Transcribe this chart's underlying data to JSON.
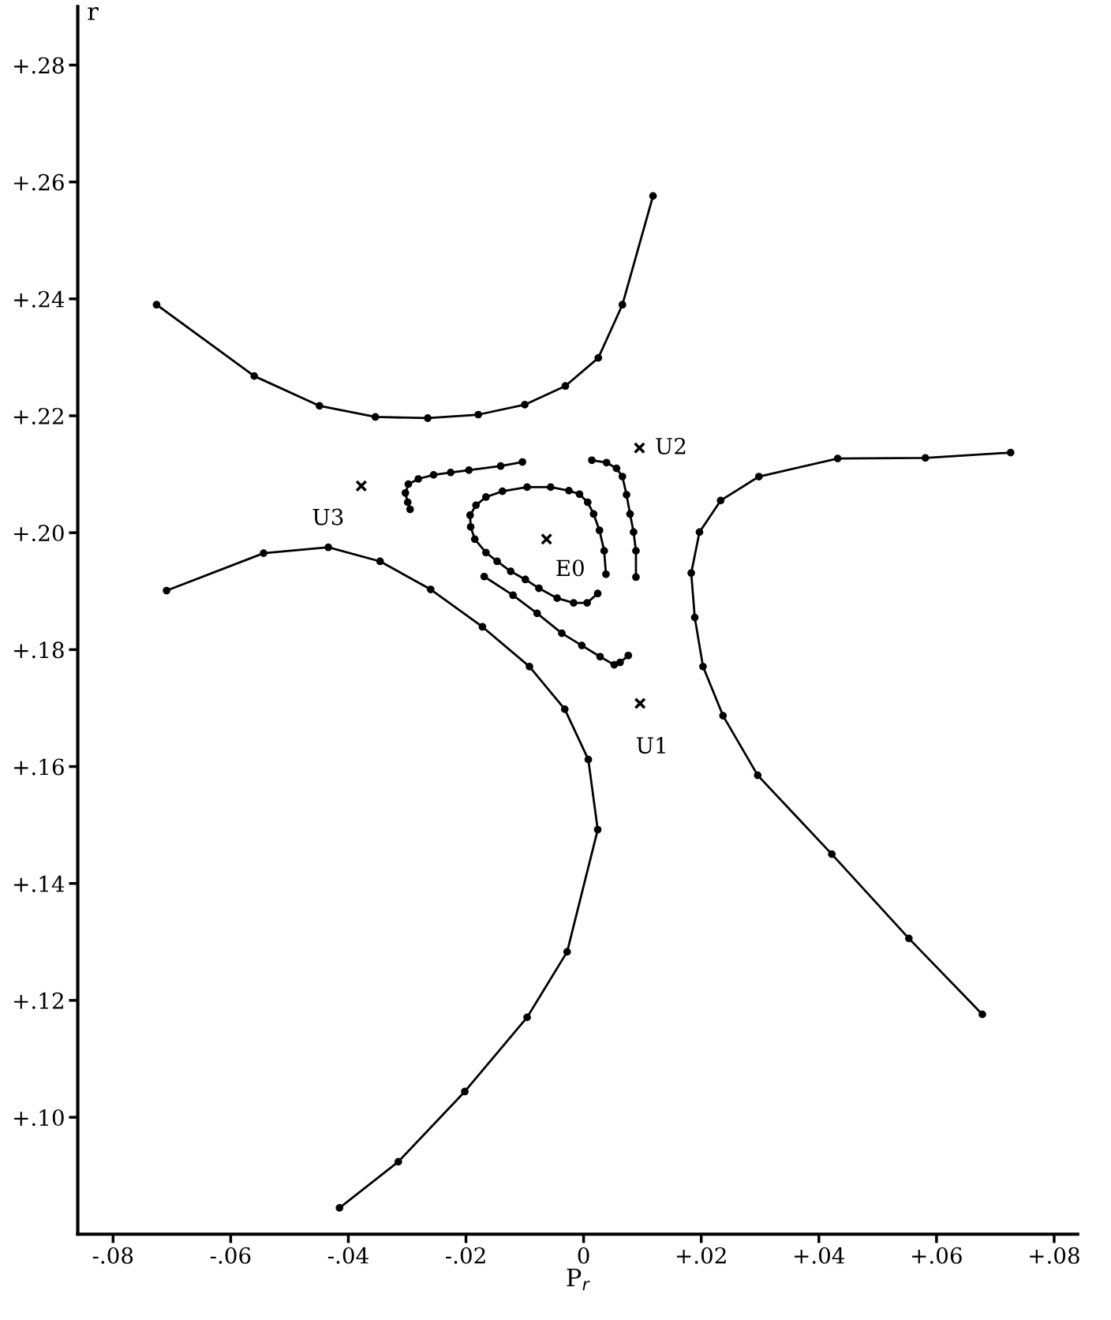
{
  "chart_data": {
    "type": "line",
    "xlabel": "P$_{r}$",
    "ylabel": "r",
    "marker": "circle",
    "line_style": "solid",
    "grid": false,
    "legend": false,
    "xlim": [
      -0.086,
      0.084
    ],
    "ylim": [
      0.08,
      0.29
    ],
    "xticks": [
      {
        "value": -0.08,
        "label": "-.08"
      },
      {
        "value": -0.06,
        "label": "-.06"
      },
      {
        "value": -0.04,
        "label": "-.04"
      },
      {
        "value": -0.02,
        "label": "-.02"
      },
      0,
      {
        "value": 0.02,
        "label": "+.02"
      },
      {
        "value": 0.04,
        "label": "+.04"
      },
      {
        "value": 0.06,
        "label": "+.06"
      },
      {
        "value": 0.08,
        "label": "+.08"
      }
    ],
    "yticks": [
      {
        "value": 0.1,
        "label": "+.10"
      },
      {
        "value": 0.12,
        "label": "+.12"
      },
      {
        "value": 0.14,
        "label": "+.14"
      },
      {
        "value": 0.16,
        "label": "+.16"
      },
      {
        "value": 0.18,
        "label": "+.18"
      },
      {
        "value": 0.2,
        "label": "+.20"
      },
      {
        "value": 0.22,
        "label": "+.22"
      },
      {
        "value": 0.24,
        "label": "+.24"
      },
      {
        "value": 0.26,
        "label": "+.26"
      },
      {
        "value": 0.28,
        "label": "+.28"
      }
    ],
    "series": [
      {
        "color": "#000000",
        "x": [
          -0.0726,
          -0.056,
          -0.0449,
          -0.0354,
          -0.0265,
          -0.0179,
          -0.01,
          -0.0031,
          0.0025,
          0.0066,
          0.0118
        ],
        "values": [
          0.239,
          0.2268,
          0.2217,
          0.2198,
          0.2196,
          0.2202,
          0.2219,
          0.2251,
          0.2299,
          0.239,
          0.2576
        ]
      },
      {
        "color": "#000000",
        "x": [
          -0.0709,
          -0.0544,
          -0.0434,
          -0.0346,
          -0.026,
          -0.0172,
          -0.0092,
          -0.0032,
          0.0008,
          0.0024,
          -0.0028,
          -0.0096,
          -0.0202,
          -0.0315,
          -0.0415
        ],
        "values": [
          0.1901,
          0.1965,
          0.1975,
          0.1951,
          0.1903,
          0.1839,
          0.1771,
          0.1698,
          0.1612,
          0.1492,
          0.1283,
          0.1171,
          0.1044,
          0.0924,
          0.0845
        ]
      },
      {
        "color": "#000000",
        "x": [
          0.0726,
          0.0581,
          0.0432,
          0.0298,
          0.0233,
          0.0197,
          0.0183,
          0.0189,
          0.0203,
          0.0237,
          0.0296,
          0.0422,
          0.0553,
          0.0678
        ],
        "values": [
          0.2137,
          0.2128,
          0.2127,
          0.2096,
          0.2055,
          0.2001,
          0.1931,
          0.1855,
          0.1771,
          0.1687,
          0.1585,
          0.145,
          0.1306,
          0.1176
        ]
      },
      {
        "color": "#000000",
        "x": [
          -0.0104,
          -0.0141,
          -0.0195,
          -0.0226,
          -0.0255,
          -0.0281,
          -0.0298,
          -0.0303,
          -0.0299,
          -0.0295
        ],
        "values": [
          0.2121,
          0.2114,
          0.2107,
          0.2103,
          0.2099,
          0.2092,
          0.2083,
          0.2068,
          0.2052,
          0.204
        ]
      },
      {
        "color": "#000000",
        "x": [
          0.0038,
          0.0035,
          0.0027,
          0.0017,
          0.0007,
          -0.0007,
          -0.0025,
          -0.0056,
          -0.0096,
          -0.0138,
          -0.0166,
          -0.0183,
          -0.0193,
          -0.0192,
          -0.0185,
          -0.0166,
          -0.0147,
          -0.0124,
          -0.0099,
          -0.0076,
          -0.0045,
          -0.0017,
          0.0006,
          0.0024
        ],
        "values": [
          0.1929,
          0.1969,
          0.2004,
          0.2032,
          0.2052,
          0.2066,
          0.2072,
          0.2078,
          0.2078,
          0.2071,
          0.2061,
          0.2047,
          0.203,
          0.201,
          0.1989,
          0.1966,
          0.1951,
          0.1934,
          0.192,
          0.1905,
          0.1888,
          0.188,
          0.188,
          0.1896
        ]
      },
      {
        "color": "#000000",
        "x": [
          0.0014,
          0.0039,
          0.0056,
          0.0066,
          0.0073,
          0.0079,
          0.0085,
          0.0089,
          0.0089
        ],
        "values": [
          0.2124,
          0.212,
          0.211,
          0.2096,
          0.2065,
          0.2032,
          0.2001,
          0.1969,
          0.1924
        ]
      },
      {
        "color": "#000000",
        "x": [
          -0.0169,
          -0.012,
          -0.0079,
          -0.0037,
          -0.0003,
          0.0028,
          0.0052,
          0.0062,
          0.0076
        ],
        "values": [
          0.1925,
          0.1893,
          0.1862,
          0.1828,
          0.1807,
          0.1788,
          0.1774,
          0.1778,
          0.179
        ]
      },
      {
        "type": "scatter",
        "marker": "cross",
        "color": "#000000",
        "x": [
          -0.0378,
          0.0095,
          -0.0063,
          0.0096
        ],
        "values": [
          0.208,
          0.2145,
          0.1989,
          0.1708
        ]
      }
    ],
    "annotations": [
      {
        "text": "U3",
        "x": -0.0378,
        "y": 0.208
      },
      {
        "text": "U2",
        "x": 0.0095,
        "y": 0.2145
      },
      {
        "text": "E0",
        "x": -0.0063,
        "y": 0.1989
      },
      {
        "text": "U1",
        "x": 0.0096,
        "y": 0.1708
      }
    ]
  }
}
